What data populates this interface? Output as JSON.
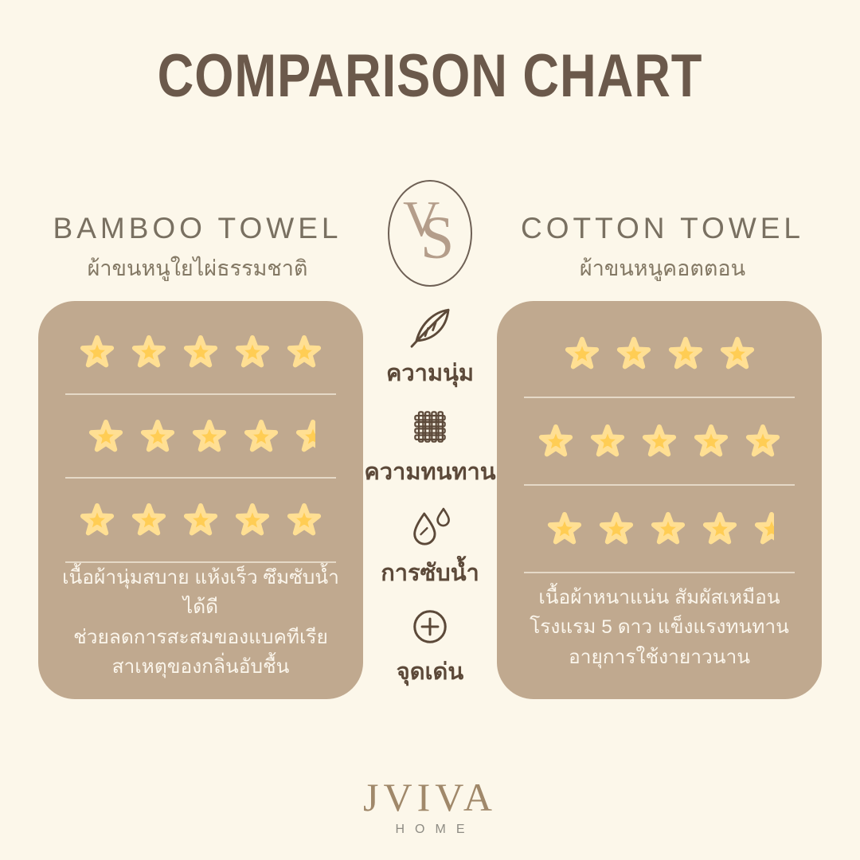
{
  "title": "COMPARISON CHART",
  "vs_label": "VS",
  "left_product": {
    "name": "BAMBOO TOWEL",
    "subtitle": "ผ้าขนหนูใยไผ่ธรรมชาติ",
    "description_lines": [
      "เนื้อผ้านุ่มสบาย แห้งเร็ว ซึมซับน้ำได้ดี",
      "ช่วยลดการสะสมของแบคทีเรีย",
      "สาเหตุของกลิ่นอับชื้น"
    ]
  },
  "right_product": {
    "name": "COTTON TOWEL",
    "subtitle": "ผ้าขนหนูคอตตอน",
    "description_lines": [
      "เนื้อผ้าหนาแน่น สัมผัสเหมือน",
      "โรงแรม 5 ดาว แข็งแรงทนทาน",
      "อายุการใช้งายาวนาน"
    ]
  },
  "criteria": [
    {
      "icon": "feather-icon",
      "label": "ความนุ่ม"
    },
    {
      "icon": "weave-icon",
      "label": "ความทนทาน"
    },
    {
      "icon": "water-drops-icon",
      "label": "การซับน้ำ"
    },
    {
      "icon": "plus-circle-icon",
      "label": "จุดเด่น"
    }
  ],
  "chart_data": {
    "type": "table",
    "title": "COMPARISON CHART",
    "categories": [
      "ความนุ่ม",
      "ความทนทาน",
      "การซับน้ำ"
    ],
    "series": [
      {
        "name": "BAMBOO TOWEL",
        "values": [
          5,
          4.5,
          5
        ]
      },
      {
        "name": "COTTON TOWEL",
        "values": [
          4,
          5,
          4.5
        ]
      }
    ],
    "value_scale": "stars, max 5"
  },
  "logo": {
    "brand": "JVIVA",
    "tagline": "HOME"
  },
  "colors": {
    "background": "#FCF7EA",
    "title": "#6B594B",
    "heading": "#797061",
    "subtitle": "#837864",
    "card": "#C0A98F",
    "divider": "rgba(252,247,234,0.62)",
    "card_text": "#FBF6EC",
    "star_fill": "#FFCD54",
    "star_rim": "#FFDF93",
    "criteria": "#5C4939",
    "vs": "#B49D8A",
    "vs_border": "#6E6055",
    "logo": "#A0886A",
    "logo_sub": "#8E8C84"
  }
}
